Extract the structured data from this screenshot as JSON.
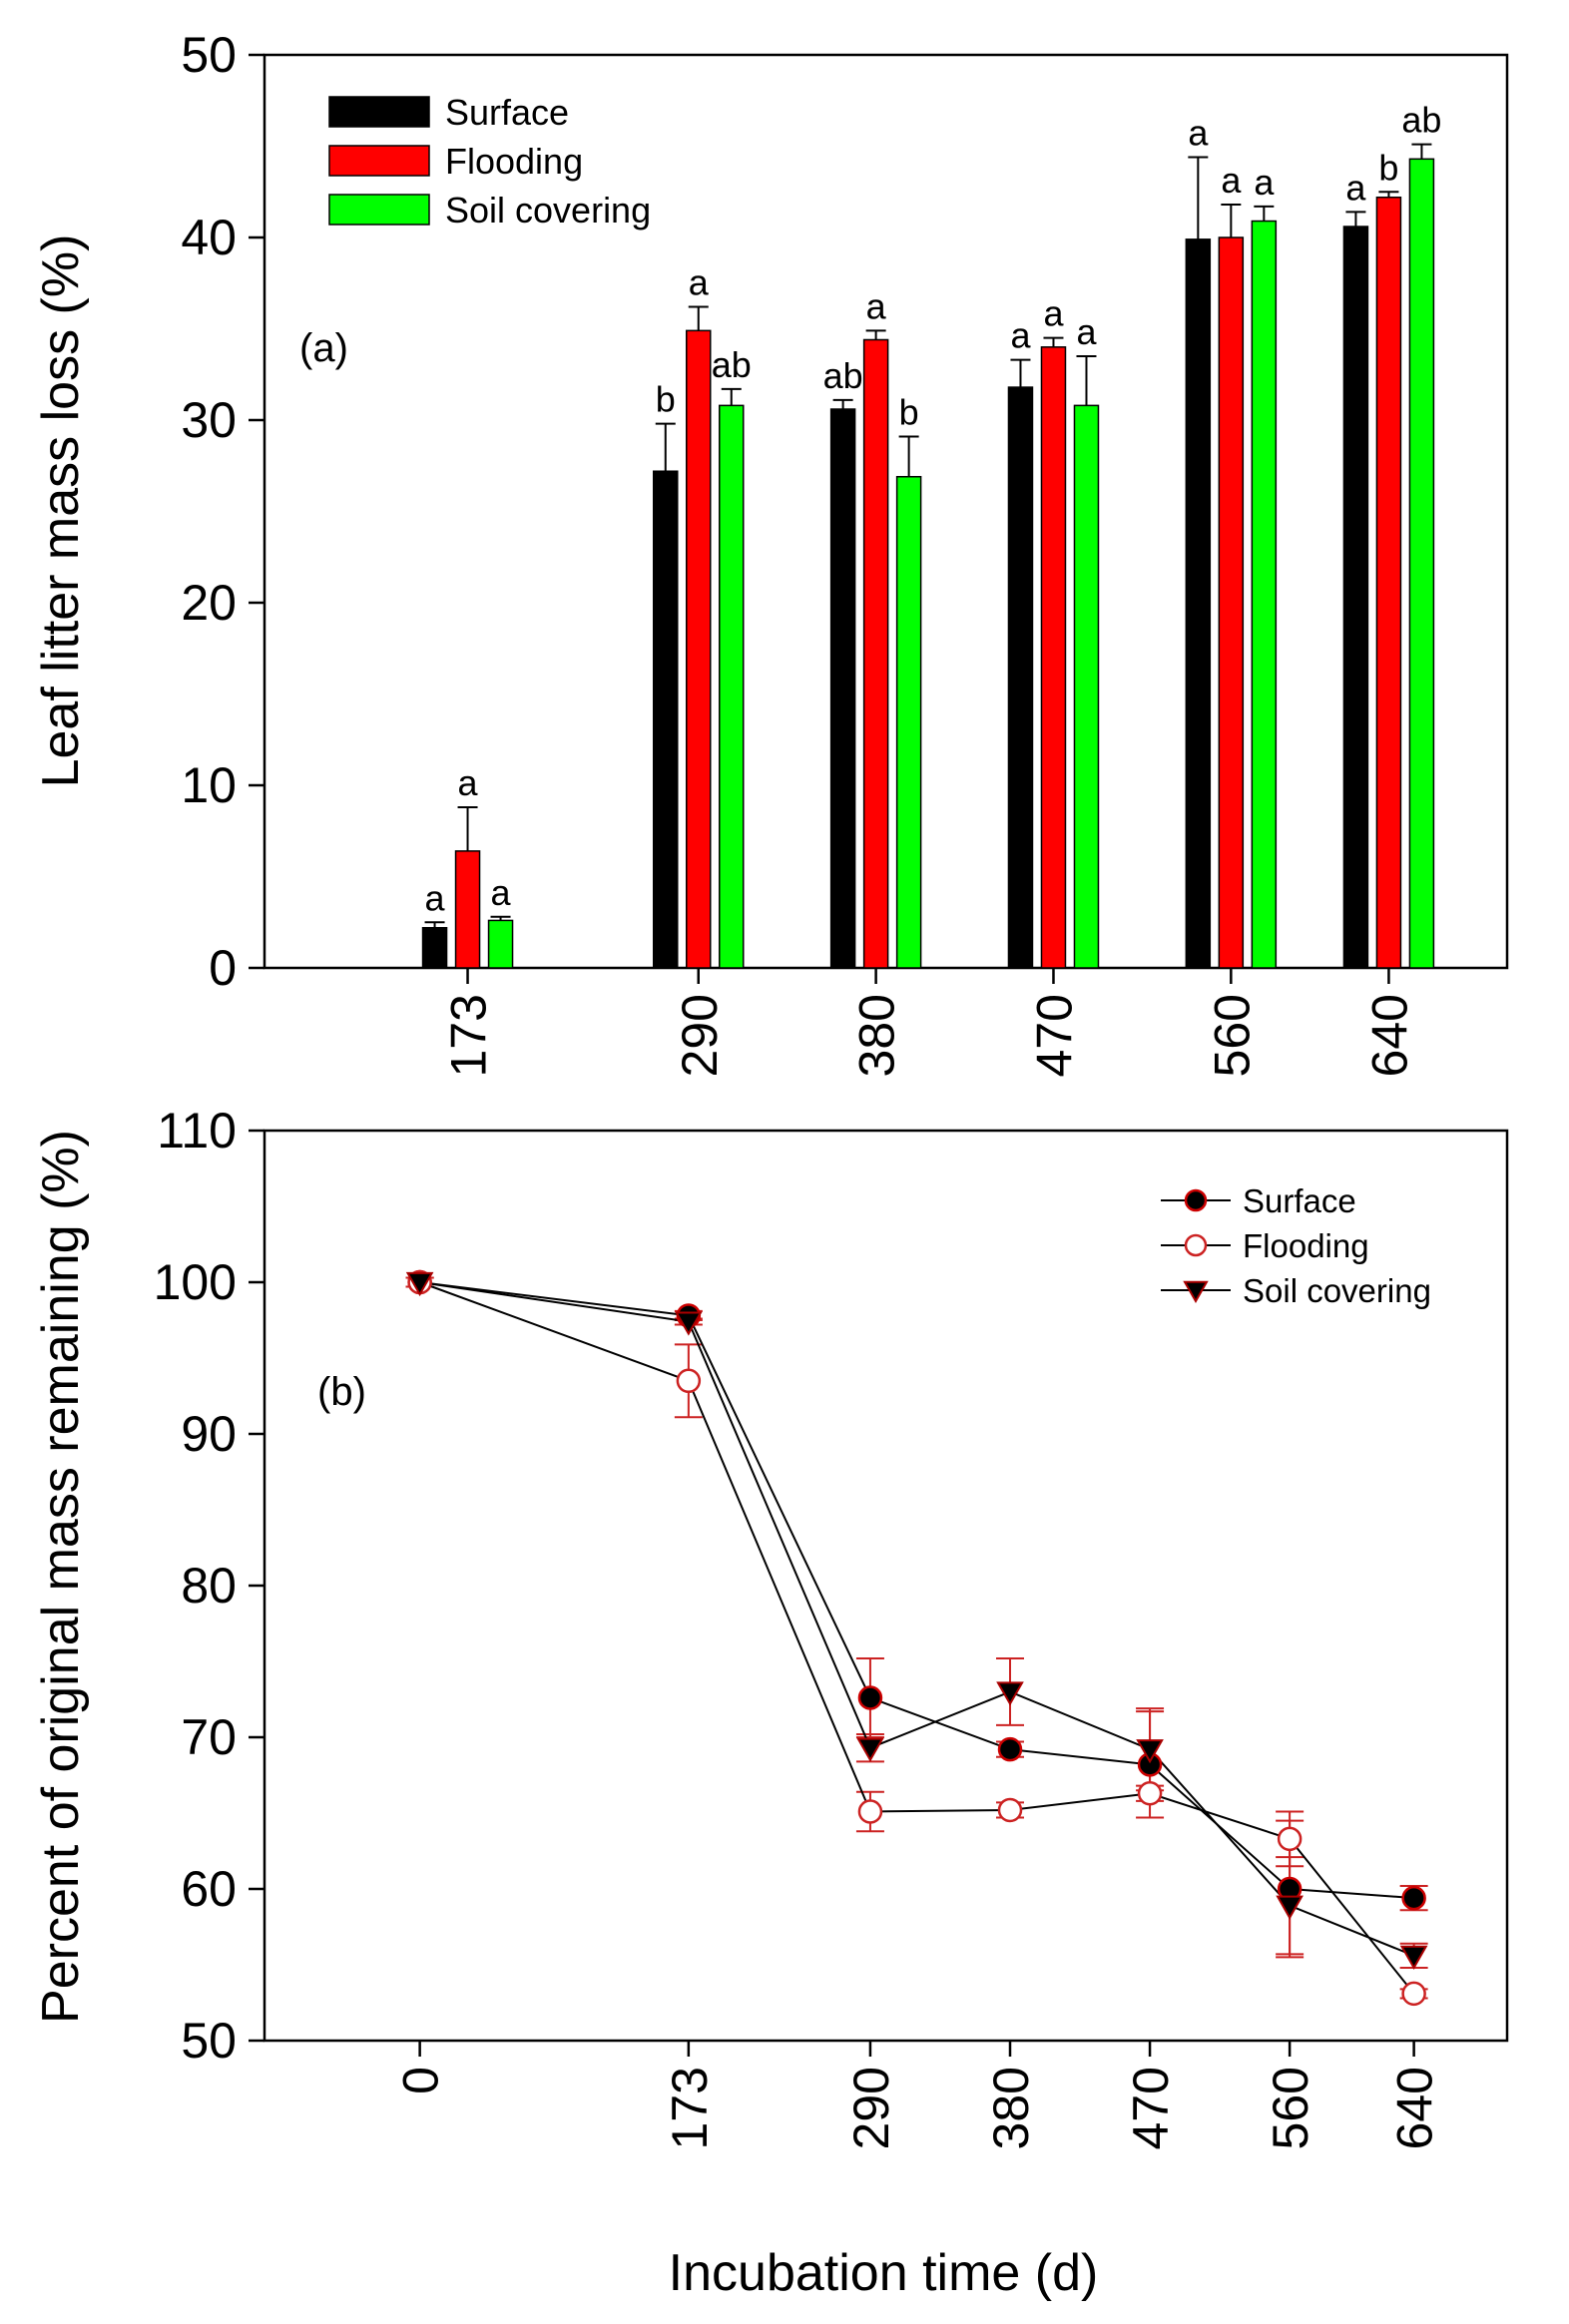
{
  "chart_data": [
    {
      "panel": "(a)",
      "type": "bar",
      "ylabel": "Leaf litter mass loss (%)",
      "xlabel": "",
      "ylim": [
        0,
        50
      ],
      "yticks": [
        0,
        10,
        20,
        30,
        40,
        50
      ],
      "categories": [
        "173",
        "290",
        "380",
        "470",
        "560",
        "640"
      ],
      "category_x": [
        173,
        290,
        380,
        470,
        560,
        640
      ],
      "xlim": [
        70,
        700
      ],
      "legend_position": "top-left",
      "series": [
        {
          "name": "Surface",
          "color": "#000000",
          "values": [
            2.2,
            27.2,
            30.6,
            31.8,
            39.9,
            40.6
          ],
          "errors": [
            0.3,
            2.6,
            0.5,
            1.5,
            4.5,
            0.8
          ],
          "letters": [
            "a",
            "b",
            "ab",
            "a",
            "a",
            "a"
          ]
        },
        {
          "name": "Flooding",
          "color": "#ff0000",
          "values": [
            6.4,
            34.9,
            34.4,
            34.0,
            40.0,
            42.2
          ],
          "errors": [
            2.4,
            1.3,
            0.5,
            0.5,
            1.8,
            0.3
          ],
          "letters": [
            "a",
            "a",
            "a",
            "a",
            "a",
            "b"
          ]
        },
        {
          "name": "Soil covering",
          "color": "#00ff00",
          "values": [
            2.6,
            30.8,
            26.9,
            30.8,
            40.9,
            44.3
          ],
          "errors": [
            0.2,
            0.9,
            2.2,
            2.7,
            0.8,
            0.8
          ],
          "letters": [
            "a",
            "ab",
            "b",
            "a",
            "a",
            "ab"
          ]
        }
      ]
    },
    {
      "panel": "(b)",
      "type": "line",
      "ylabel": "Percent of original mass remaining (%)",
      "xlabel": "Incubation time (d)",
      "ylim": [
        50,
        110
      ],
      "yticks": [
        50,
        60,
        70,
        80,
        90,
        100,
        110
      ],
      "x": [
        0,
        173,
        290,
        380,
        470,
        560,
        640
      ],
      "xticks": [
        "0",
        "173",
        "290",
        "380",
        "470",
        "560",
        "640"
      ],
      "xlim": [
        -100,
        700
      ],
      "legend_position": "top-right",
      "series": [
        {
          "name": "Surface",
          "marker": "filled-circle",
          "values": [
            100,
            97.8,
            72.6,
            69.2,
            68.2,
            60.0,
            59.4
          ],
          "errors": [
            0.3,
            0.3,
            2.6,
            0.5,
            3.5,
            4.5,
            0.8
          ]
        },
        {
          "name": "Flooding",
          "marker": "open-circle",
          "values": [
            100,
            93.5,
            65.1,
            65.2,
            66.3,
            63.3,
            53.1
          ],
          "errors": [
            0.3,
            2.4,
            1.3,
            0.5,
            0.5,
            1.8,
            0.3
          ]
        },
        {
          "name": "Soil covering",
          "marker": "filled-triangle-down",
          "values": [
            100,
            97.4,
            69.3,
            73.0,
            69.2,
            58.9,
            55.6
          ],
          "errors": [
            0.3,
            0.2,
            0.9,
            2.2,
            2.7,
            3.2,
            0.8
          ]
        }
      ]
    }
  ]
}
